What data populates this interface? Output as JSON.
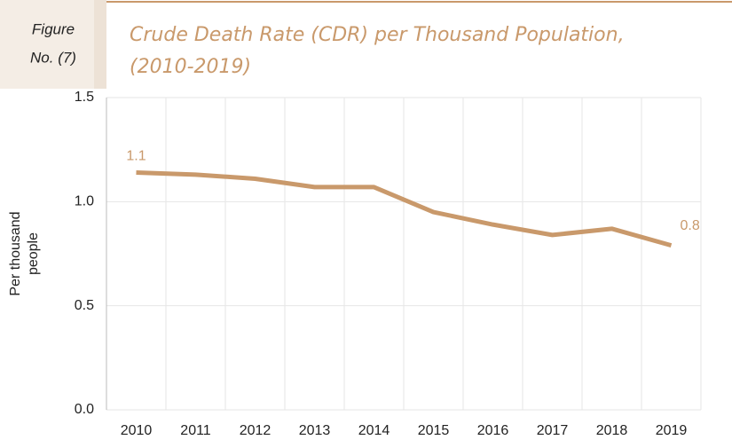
{
  "header": {
    "figure_label": [
      "Figure",
      "No. (7)"
    ]
  },
  "chart_data": {
    "type": "line",
    "title": [
      "Crude Death Rate (CDR) per Thousand Population,",
      "(2010-2019)"
    ],
    "ylabel": [
      "Per thousand",
      "people"
    ],
    "categories": [
      "2010",
      "2011",
      "2012",
      "2013",
      "2014",
      "2015",
      "2016",
      "2017",
      "2018",
      "2019"
    ],
    "values": [
      1.14,
      1.13,
      1.11,
      1.07,
      1.07,
      0.95,
      0.89,
      0.84,
      0.87,
      0.79
    ],
    "value_labels": [
      "1.1",
      null,
      null,
      null,
      null,
      null,
      null,
      null,
      null,
      "0.8"
    ],
    "color": "#c9996b",
    "ylim": [
      0,
      1.5
    ],
    "yticks": [
      {
        "value": 0,
        "label": "0.0"
      },
      {
        "value": 0.5,
        "label": "0.5"
      },
      {
        "value": 1,
        "label": "1.0"
      },
      {
        "value": 1.5,
        "label": "1.5"
      }
    ],
    "grid": true
  }
}
